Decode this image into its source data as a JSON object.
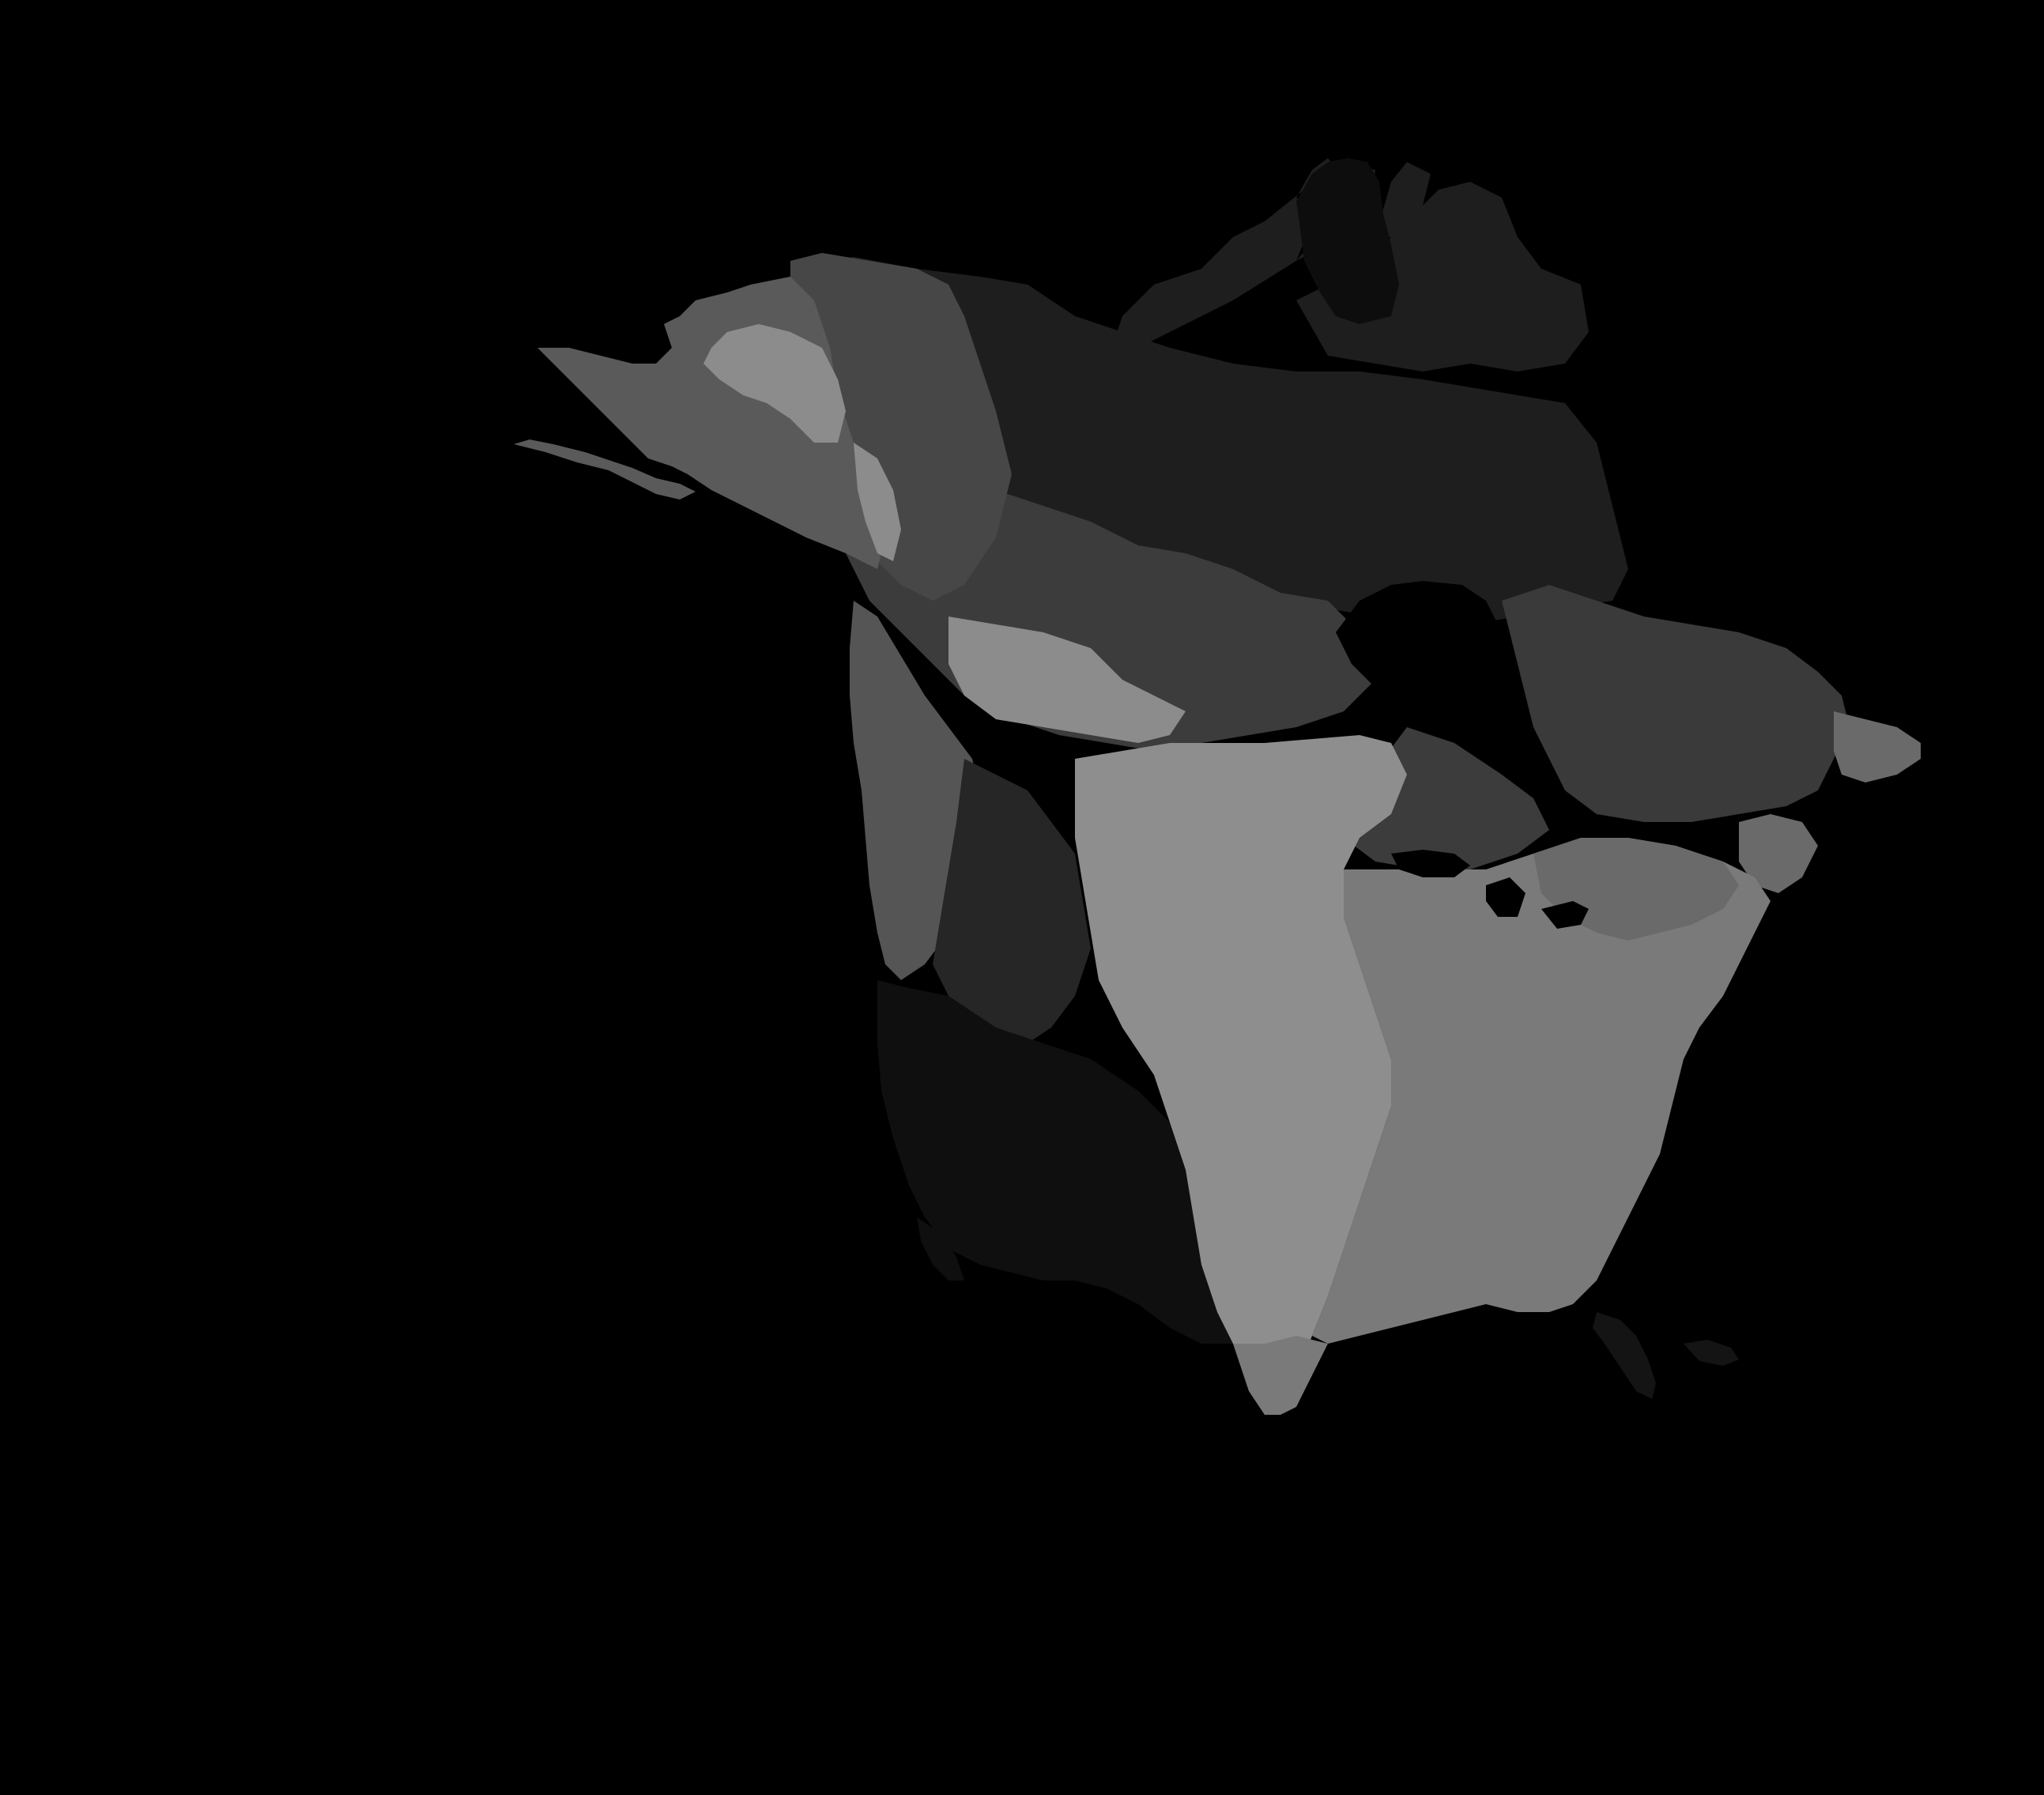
{
  "map": {
    "kind": "grayscale raster",
    "subject": "North America",
    "background_color": "#000000",
    "tones": {
      "arctic": "#1e1e1e",
      "arctic_dark": "#0d0d0d",
      "boreal_west": "#3c3c3c",
      "boreal_mid": "#474747",
      "alaska_light": "#8c8c8c",
      "alaska_mid": "#5a5a5a",
      "coastal_west": "#555555",
      "mountain_west": "#262626",
      "southwest": "#0f0f0f",
      "plains": "#8e8e8e",
      "east": "#7a7a7a",
      "northeast": "#6a6a6a",
      "quebec": "#3a3a3a",
      "florida": "#141414",
      "water": "#000000"
    },
    "legend": null,
    "labels": []
  }
}
